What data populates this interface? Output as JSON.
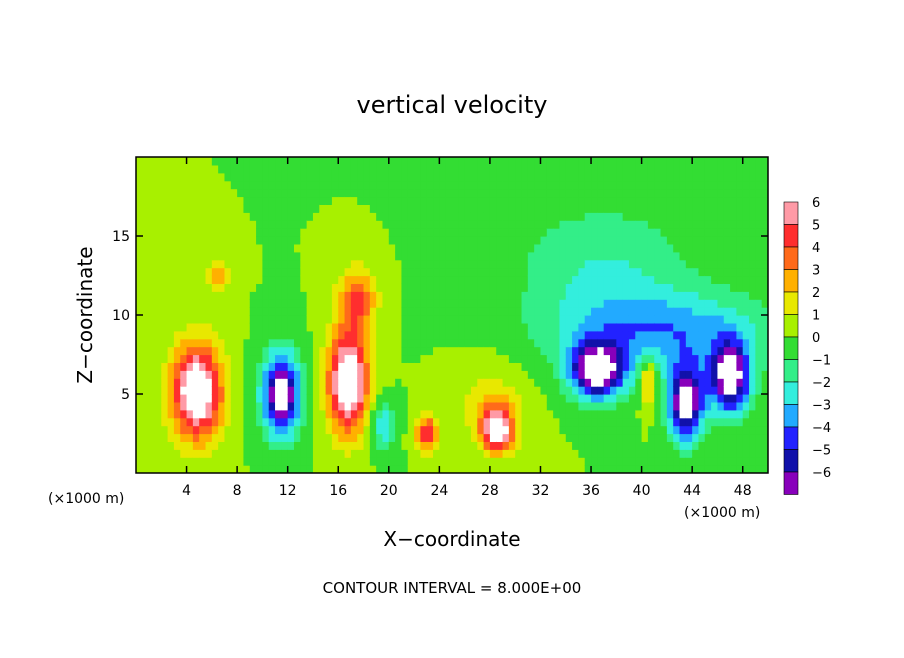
{
  "chart_data": {
    "type": "heatmap",
    "title": "vertical velocity",
    "xlabel": "X−coordinate",
    "ylabel": "Z−coordinate",
    "x_unit": "(×1000 m)",
    "z_unit": "(×1000 m)",
    "footer": "CONTOUR INTERVAL = 8.000E+00",
    "xlim": [
      0,
      50
    ],
    "ylim": [
      0,
      20
    ],
    "x_ticks": [
      4,
      8,
      12,
      16,
      20,
      24,
      28,
      32,
      36,
      40,
      44,
      48
    ],
    "y_ticks": [
      5,
      10,
      15
    ],
    "colorbar": {
      "levels": [
        6,
        5,
        4,
        3,
        2,
        1,
        0,
        -1,
        -2,
        -3,
        -4,
        -5,
        -6
      ],
      "labels": [
        "6",
        "5",
        "4",
        "3",
        "2",
        "1",
        "0",
        "−1",
        "−2",
        "−3",
        "−4",
        "−5",
        "−6"
      ],
      "colors": [
        "#ff9aa6",
        "#ff2e2e",
        "#ff6a1a",
        "#ffb000",
        "#e8e800",
        "#a8f000",
        "#33dd33",
        "#33ee88",
        "#33eedd",
        "#22aaff",
        "#2222ff",
        "#1111aa",
        "#8800bb"
      ]
    },
    "background_level": 0.5,
    "features": [
      {
        "sign": "updraft",
        "x": 4.8,
        "z": 5.2,
        "sx": 2.0,
        "sz": 3.0,
        "peak": 8
      },
      {
        "sign": "updraft",
        "x": 16.8,
        "z": 5.8,
        "sx": 1.6,
        "sz": 3.2,
        "peak": 8
      },
      {
        "sign": "updraft",
        "x": 28.6,
        "z": 2.8,
        "sx": 1.3,
        "sz": 1.4,
        "peak": 7
      },
      {
        "sign": "updraft",
        "x": 23.0,
        "z": 2.5,
        "sx": 0.9,
        "sz": 1.1,
        "peak": 5
      },
      {
        "sign": "updraft",
        "x": 17.5,
        "z": 11.0,
        "sx": 1.5,
        "sz": 2.0,
        "peak": 4
      },
      {
        "sign": "updraft",
        "x": 6.5,
        "z": 12.5,
        "sx": 1.2,
        "sz": 0.8,
        "peak": 3
      },
      {
        "sign": "updraft",
        "x": 28.0,
        "z": 4.5,
        "sx": 3.0,
        "sz": 2.5,
        "peak": 1.5
      },
      {
        "sign": "updraft",
        "x": 40.5,
        "z": 5.8,
        "sx": 0.6,
        "sz": 1.6,
        "peak": 3.5
      },
      {
        "sign": "downdraft",
        "x": 11.5,
        "z": 5.0,
        "sx": 1.5,
        "sz": 2.6,
        "peak": -8
      },
      {
        "sign": "downdraft",
        "x": 36.5,
        "z": 6.5,
        "sx": 2.2,
        "sz": 1.8,
        "peak": -8
      },
      {
        "sign": "downdraft",
        "x": 43.5,
        "z": 4.5,
        "sx": 1.4,
        "sz": 2.4,
        "peak": -8
      },
      {
        "sign": "downdraft",
        "x": 47.0,
        "z": 6.0,
        "sx": 1.6,
        "sz": 2.2,
        "peak": -8
      },
      {
        "sign": "downdraft",
        "x": 42.0,
        "z": 9.0,
        "sx": 8.5,
        "sz": 2.5,
        "peak": -3.5
      },
      {
        "sign": "downdraft",
        "x": 19.5,
        "z": 3.0,
        "sx": 1.0,
        "sz": 1.5,
        "peak": -3
      },
      {
        "sign": "downdraft",
        "x": 37.0,
        "z": 13.0,
        "sx": 7.0,
        "sz": 4.0,
        "peak": -2
      }
    ]
  }
}
